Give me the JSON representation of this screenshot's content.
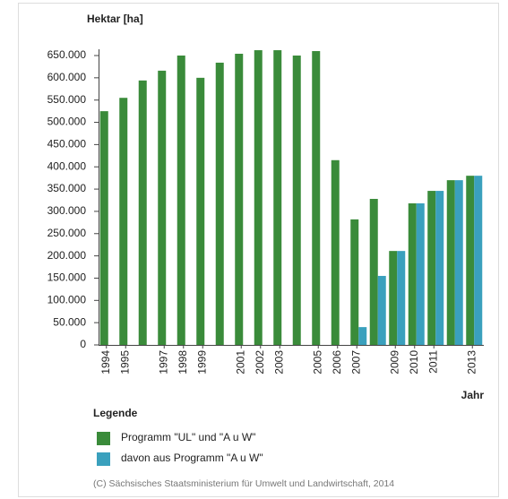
{
  "chart_data": {
    "type": "bar",
    "title": "Hektar [ha]",
    "xlabel": "Jahr",
    "legend_title": "Legende",
    "source": "(C) Sächsisches Staatsministerium für Umwelt und Landwirtschaft, 2014",
    "categories": [
      "1994",
      "1995",
      null,
      "1997",
      "1998",
      "1999",
      null,
      "2001",
      "2002",
      "2003",
      null,
      "2005",
      "2006",
      "2007",
      null,
      "2009",
      "2010",
      "2011",
      null,
      "2013"
    ],
    "series": [
      {
        "name": "Programm \"UL\" und \"A u W\"",
        "color": "#3a8b3a",
        "values": [
          525000,
          555000,
          594000,
          616000,
          650000,
          600000,
          634000,
          654000,
          662000,
          662000,
          650000,
          660000,
          415000,
          282000,
          328000,
          211000,
          318000,
          346000,
          370000,
          380000
        ]
      },
      {
        "name": "davon aus Programm \"A u W\"",
        "color": "#3aa0bd",
        "values": [
          null,
          null,
          null,
          null,
          null,
          null,
          null,
          null,
          null,
          null,
          null,
          null,
          null,
          40000,
          155000,
          211000,
          318000,
          346000,
          370000,
          380000
        ]
      }
    ],
    "ylim": [
      0,
      650000
    ],
    "yticks": [
      0,
      {
        "value": 50000,
        "label": "50.000"
      },
      {
        "value": 100000,
        "label": "100.000"
      },
      {
        "value": 150000,
        "label": "150.000"
      },
      {
        "value": 200000,
        "label": "200.000"
      },
      {
        "value": 250000,
        "label": "250.000"
      },
      {
        "value": 300000,
        "label": "300.000"
      },
      {
        "value": 350000,
        "label": "350.000"
      },
      {
        "value": 400000,
        "label": "400.000"
      },
      {
        "value": 450000,
        "label": "450.000"
      },
      {
        "value": 500000,
        "label": "500.000"
      },
      {
        "value": 550000,
        "label": "550.000"
      },
      {
        "value": 600000,
        "label": "600.000"
      },
      {
        "value": 650000,
        "label": "650.000"
      }
    ],
    "grid": false
  }
}
